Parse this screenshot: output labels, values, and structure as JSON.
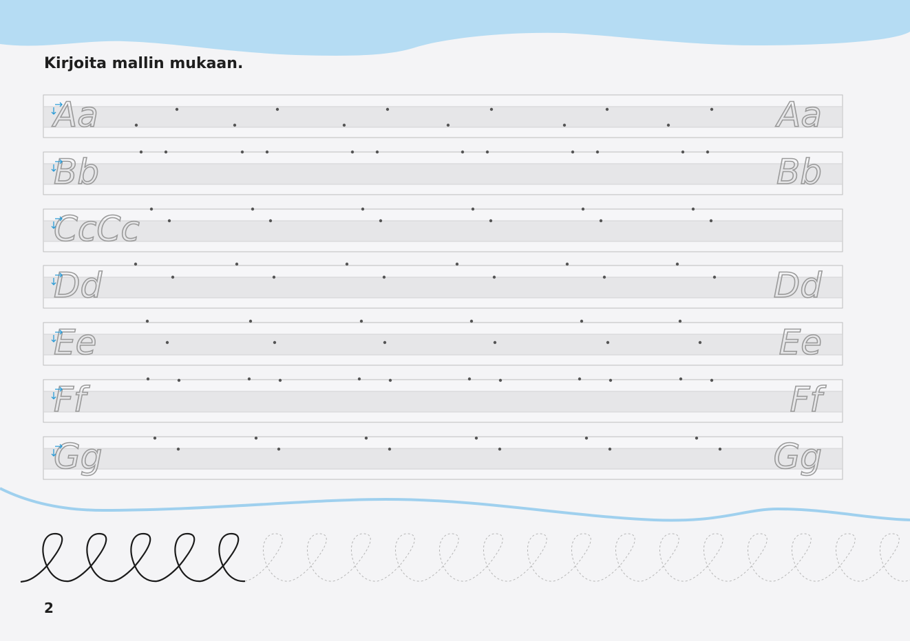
{
  "instruction": "Kirjoita mallin mukaan.",
  "page_number": "2",
  "colors": {
    "sky": "#b5dcf3",
    "wave_line": "#9fd0ee",
    "band": "#e6e6e8",
    "border": "#bdbdbd",
    "letter_gray": "#9a9a9a",
    "dot": "#555555",
    "arrow_blue": "#2b9bd6",
    "ink": "#1a1a1a"
  },
  "rows": [
    {
      "start": "Aa",
      "end": "Aa"
    },
    {
      "start": "Bb",
      "end": "Bb"
    },
    {
      "start": "CcCc",
      "end": ""
    },
    {
      "start": "Dd",
      "end": "Dd"
    },
    {
      "start": "Ee",
      "end": "Ee"
    },
    {
      "start": "Ff",
      "end": "Ff"
    },
    {
      "start": "Gg",
      "end": "Gg"
    }
  ],
  "loops": {
    "solid_count": 5,
    "dashed_count": 16
  }
}
